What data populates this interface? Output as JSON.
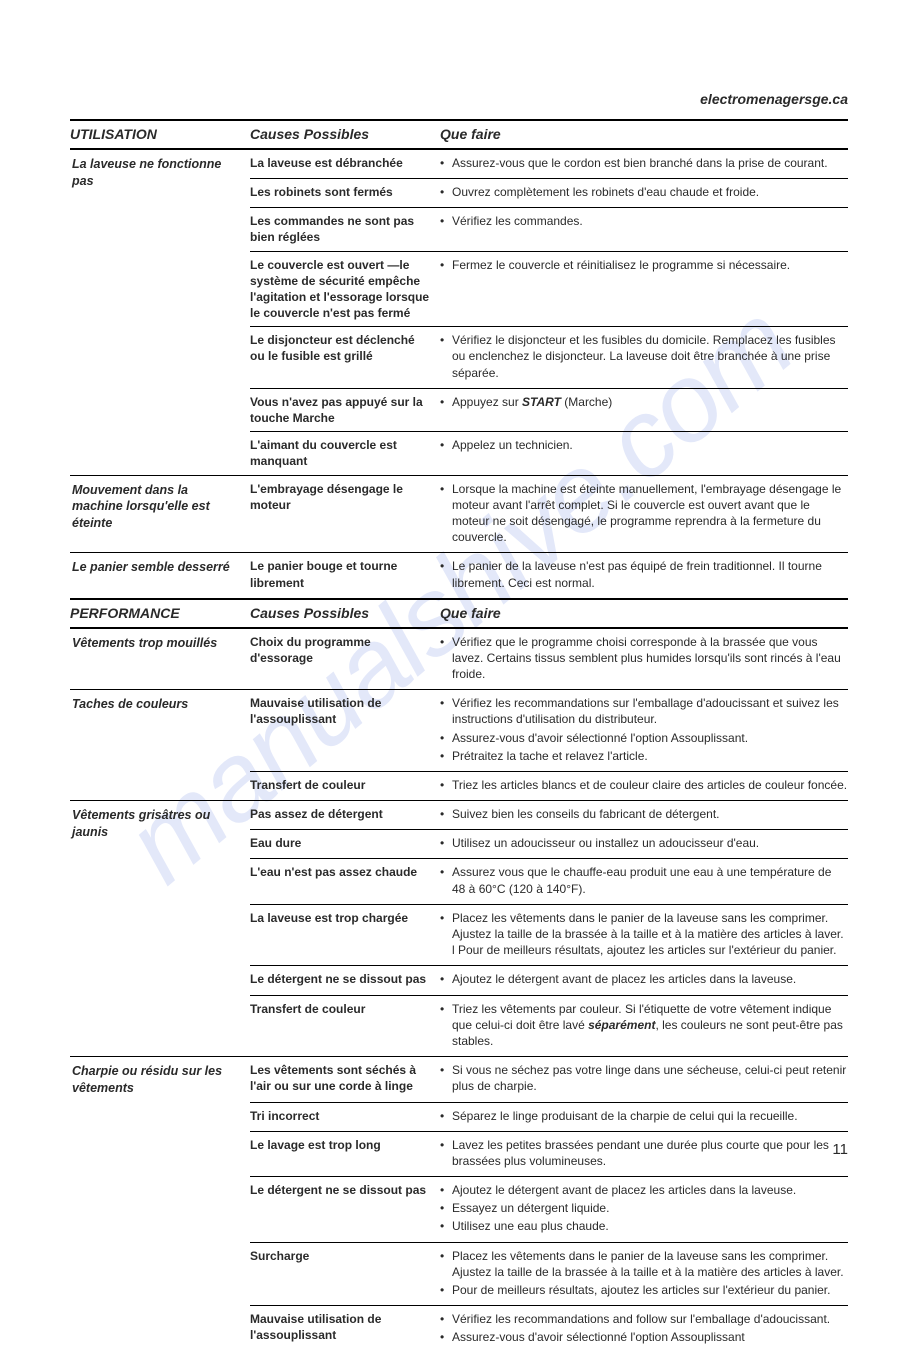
{
  "url": "electromenagersge.ca",
  "watermark": "manualshive.com",
  "page_number": "11",
  "sections": [
    {
      "title": "UTILISATION",
      "causes_header": "Causes Possibles",
      "action_header": "Que faire",
      "groups": [
        {
          "problem": "La laveuse ne fonctionne pas",
          "causes": [
            {
              "cause": "La laveuse est débranchée",
              "actions": [
                "Assurez-vous que le cordon est bien branché dans la prise de courant."
              ]
            },
            {
              "cause": "Les robinets sont fermés",
              "actions": [
                "Ouvrez complètement les robinets d'eau chaude et froide."
              ]
            },
            {
              "cause": "Les commandes ne sont pas bien réglées",
              "actions": [
                "Vérifiez les commandes."
              ]
            },
            {
              "cause": "Le couvercle est ouvert —le système de sécurité empêche l'agitation et l'essorage lorsque le couvercle n'est pas fermé",
              "actions": [
                "Fermez le couvercle et réinitialisez le programme si nécessaire."
              ]
            },
            {
              "cause": "Le disjoncteur est déclenché ou le fusible est grillé",
              "actions": [
                "Vérifiez le disjoncteur et les fusibles du domicile. Remplacez les fusibles ou enclenchez le disjoncteur. La laveuse doit être branchée à une prise séparée."
              ]
            },
            {
              "cause": "Vous n'avez pas appuyé sur la touche Marche",
              "actions_html": [
                "Appuyez sur <span class='ital-inline'>START</span> (Marche)"
              ]
            },
            {
              "cause": "L'aimant du couvercle est manquant",
              "actions": [
                "Appelez un technicien."
              ]
            }
          ]
        },
        {
          "problem": "Mouvement dans la machine lorsqu'elle est éteinte",
          "causes": [
            {
              "cause": "L'embrayage désengage le moteur",
              "actions": [
                "Lorsque la machine est éteinte manuellement, l'embrayage désengage le moteur avant l'arrêt complet. Si le couvercle est ouvert avant que le moteur ne soit désengagé, le programme reprendra à la fermeture du couvercle."
              ]
            }
          ]
        },
        {
          "problem": "Le panier semble desserré",
          "causes": [
            {
              "cause": "Le panier bouge et tourne librement",
              "actions": [
                "Le panier de la laveuse n'est pas équipé de frein traditionnel. Il tourne librement. Ceci est normal."
              ]
            }
          ]
        }
      ]
    },
    {
      "title": "PERFORMANCE",
      "causes_header": "Causes Possibles",
      "action_header": "Que faire",
      "groups": [
        {
          "problem": "Vêtements trop mouillés",
          "causes": [
            {
              "cause": "Choix du programme d'essorage",
              "actions": [
                "Vérifiez que le programme choisi corresponde à la brassée que vous lavez. Certains tissus semblent plus humides lorsqu'ils sont rincés à l'eau froide."
              ]
            }
          ]
        },
        {
          "problem": "Taches de couleurs",
          "causes": [
            {
              "cause": "Mauvaise utilisation de l'assouplissant",
              "actions": [
                "Vérifiez les recommandations sur l'emballage d'adoucissant et suivez les instructions d'utilisation du distributeur.",
                "Assurez-vous d'avoir sélectionné l'option Assouplissant.",
                "Prétraitez la tache et relavez l'article."
              ]
            },
            {
              "cause": "Transfert de couleur",
              "actions": [
                "Triez les articles blancs et de couleur claire des articles de couleur foncée."
              ]
            }
          ]
        },
        {
          "problem": "Vêtements grisâtres ou jaunis",
          "causes": [
            {
              "cause": "Pas assez de détergent",
              "actions": [
                "Suivez bien les conseils du fabricant de détergent."
              ]
            },
            {
              "cause": "Eau dure",
              "actions": [
                "Utilisez un adoucisseur ou installez un adoucisseur d'eau."
              ]
            },
            {
              "cause": "L'eau n'est pas assez chaude",
              "actions": [
                "Assurez vous que le chauffe-eau produit une eau à une température de 48 à 60°C (120 à 140°F)."
              ]
            },
            {
              "cause": "La laveuse est trop chargée",
              "actions": [
                "Placez les vêtements dans le panier de la laveuse sans les comprimer. Ajustez la taille de la brassée à la taille et à la matière des articles à laver. l Pour de meilleurs résultats, ajoutez les articles sur l'extérieur du panier."
              ]
            },
            {
              "cause": "Le détergent ne se dissout pas",
              "actions": [
                "Ajoutez le détergent avant de placez les articles dans la laveuse."
              ]
            },
            {
              "cause": "Transfert de couleur",
              "actions_html": [
                "Triez les vêtements par couleur. Si l'étiquette de votre vêtement indique que celui-ci doit être lavé <span class='ital-inline'>séparément</span>, les couleurs ne sont peut-être pas stables."
              ]
            }
          ]
        },
        {
          "problem": "Charpie ou résidu sur les vêtements",
          "causes": [
            {
              "cause": "Les vêtements sont séchés à l'air ou sur une corde à linge",
              "actions": [
                "Si vous ne séchez pas votre linge dans une sécheuse, celui-ci peut retenir plus de charpie."
              ]
            },
            {
              "cause": "Tri incorrect",
              "actions": [
                "Séparez le linge produisant de la charpie de celui qui la recueille."
              ]
            },
            {
              "cause": "Le lavage est trop long",
              "actions": [
                "Lavez les petites brassées pendant une durée plus courte que pour les brassées plus volumineuses."
              ]
            },
            {
              "cause": "Le détergent ne se dissout pas",
              "actions": [
                "Ajoutez le détergent avant de placez les articles dans la laveuse.",
                "Essayez un détergent liquide.",
                "Utilisez une eau plus chaude."
              ]
            },
            {
              "cause": "Surcharge",
              "actions": [
                "Placez les vêtements dans le panier de la laveuse sans les comprimer. Ajustez la taille de la brassée à la taille et à la matière des articles à laver.",
                "Pour de meilleurs résultats, ajoutez les articles sur l'extérieur du panier."
              ]
            },
            {
              "cause": "Mauvaise utilisation de l'assouplissant",
              "actions": [
                "Vérifiez les recommandations and follow sur l'emballage d'adoucissant.",
                "Assurez-vous d'avoir sélectionné l'option Assouplissant"
              ]
            }
          ]
        }
      ]
    }
  ]
}
